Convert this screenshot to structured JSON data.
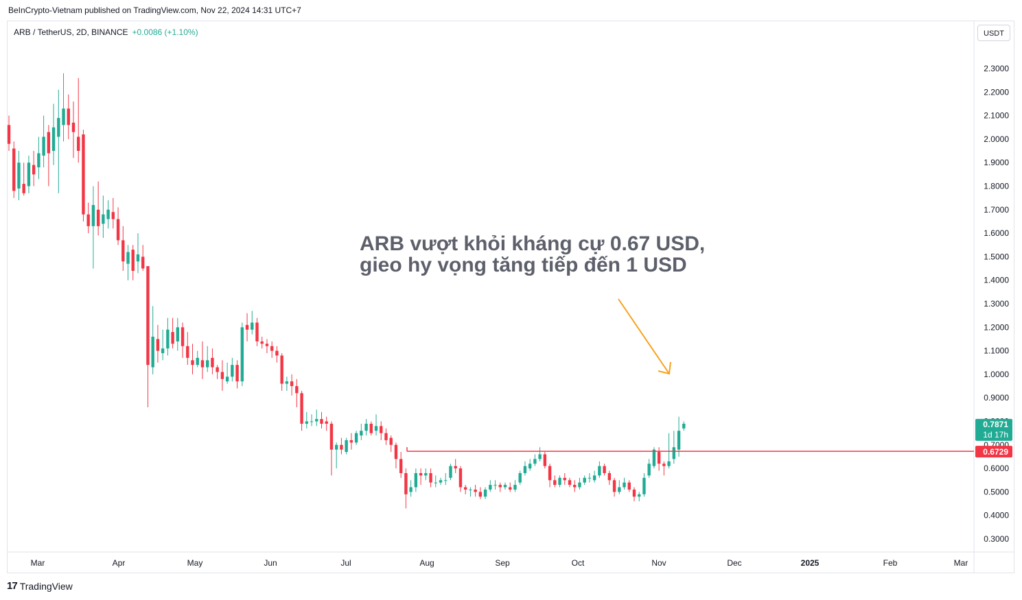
{
  "header": {
    "published": "BeInCrypto-Vietnam published on TradingView.com, Nov 22, 2024 14:31 UTC+7"
  },
  "legend": {
    "symbol": "ARB / TetherUS, 2D, BINANCE",
    "change": "+0.0086 (+1.10%)"
  },
  "axis": {
    "unit_button": "USDT"
  },
  "footer": {
    "brand": "TradingView",
    "logo_icon": "tradingview-logo-icon"
  },
  "colors": {
    "up": "#22ab94",
    "down": "#f23645",
    "level": "#f23645",
    "arrow": "#f7a21b",
    "annotation": "#5d606b"
  },
  "chart_data": {
    "type": "candlestick",
    "ylim": [
      0.27,
      2.42
    ],
    "y_ticks": [
      "2.3000",
      "2.2000",
      "2.1000",
      "2.0000",
      "1.9000",
      "1.8000",
      "1.7000",
      "1.6000",
      "1.5000",
      "1.4000",
      "1.3000",
      "1.2000",
      "1.1000",
      "1.0000",
      "0.9000",
      "0.8000",
      "0.7000",
      "0.6000",
      "0.5000",
      "0.4000",
      "0.3000"
    ],
    "x_labels": [
      "Mar",
      "Apr",
      "May",
      "Jun",
      "Jul",
      "Aug",
      "Sep",
      "Oct",
      "Nov",
      "Dec",
      "2025",
      "Feb",
      "Mar"
    ],
    "annotation": [
      "ARB vượt khỏi kháng cự 0.67 USD,",
      "gieo hy vọng tăng tiếp đến 1 USD"
    ],
    "level": 0.6729,
    "level_label": "0.6729",
    "last_price_label": "0.7871",
    "countdown_label": "1d 17h",
    "last_price": 0.7871,
    "candles": [
      [
        2.06,
        1.98,
        2.1,
        1.95
      ],
      [
        1.96,
        1.78,
        1.99,
        1.75
      ],
      [
        1.79,
        1.9,
        1.95,
        1.74
      ],
      [
        1.81,
        1.77,
        1.9,
        1.76
      ],
      [
        1.8,
        1.9,
        1.93,
        1.77
      ],
      [
        1.89,
        1.85,
        1.95,
        1.8
      ],
      [
        1.88,
        1.94,
        2.01,
        1.83
      ],
      [
        1.93,
        2.01,
        2.1,
        1.88
      ],
      [
        2.03,
        1.94,
        2.06,
        1.8
      ],
      [
        1.95,
        2.05,
        2.15,
        1.89
      ],
      [
        2.01,
        2.09,
        2.21,
        1.77
      ],
      [
        2.06,
        2.13,
        2.28,
        1.99
      ],
      [
        2.13,
        2.06,
        2.19,
        2.0
      ],
      [
        2.07,
        2.03,
        2.16,
        1.92
      ],
      [
        2.01,
        1.95,
        2.26,
        1.9
      ],
      [
        2.02,
        1.68,
        2.04,
        1.65
      ],
      [
        1.68,
        1.63,
        1.73,
        1.6
      ],
      [
        1.63,
        1.72,
        1.8,
        1.45
      ],
      [
        1.7,
        1.63,
        1.82,
        1.59
      ],
      [
        1.64,
        1.68,
        1.76,
        1.58
      ],
      [
        1.66,
        1.7,
        1.74,
        1.62
      ],
      [
        1.69,
        1.66,
        1.75,
        1.62
      ],
      [
        1.66,
        1.57,
        1.71,
        1.55
      ],
      [
        1.57,
        1.48,
        1.63,
        1.44
      ],
      [
        1.47,
        1.52,
        1.55,
        1.4
      ],
      [
        1.53,
        1.44,
        1.55,
        1.4
      ],
      [
        1.48,
        1.51,
        1.6,
        1.43
      ],
      [
        1.5,
        1.45,
        1.55,
        1.44
      ],
      [
        1.46,
        1.04,
        1.46,
        0.86
      ],
      [
        1.03,
        1.16,
        1.29,
        1.0
      ],
      [
        1.15,
        1.1,
        1.21,
        1.05
      ],
      [
        1.09,
        1.11,
        1.19,
        1.06
      ],
      [
        1.11,
        1.19,
        1.24,
        1.08
      ],
      [
        1.18,
        1.13,
        1.24,
        1.11
      ],
      [
        1.14,
        1.2,
        1.24,
        1.1
      ],
      [
        1.2,
        1.12,
        1.22,
        1.07
      ],
      [
        1.12,
        1.07,
        1.18,
        1.04
      ],
      [
        1.06,
        1.04,
        1.13,
        1.0
      ],
      [
        1.04,
        1.07,
        1.1,
        1.03
      ],
      [
        1.06,
        1.03,
        1.14,
        0.98
      ],
      [
        1.03,
        1.06,
        1.12,
        1.01
      ],
      [
        1.07,
        1.03,
        1.11,
        1.0
      ],
      [
        1.03,
        1.01,
        1.04,
        0.98
      ],
      [
        1.01,
        0.98,
        1.06,
        0.93
      ],
      [
        0.97,
        0.99,
        1.05,
        0.96
      ],
      [
        0.99,
        1.04,
        1.07,
        0.97
      ],
      [
        1.04,
        0.97,
        1.06,
        0.94
      ],
      [
        0.97,
        1.2,
        1.22,
        0.95
      ],
      [
        1.21,
        1.19,
        1.26,
        1.14
      ],
      [
        1.19,
        1.22,
        1.27,
        1.17
      ],
      [
        1.22,
        1.14,
        1.24,
        1.12
      ],
      [
        1.14,
        1.13,
        1.16,
        1.11
      ],
      [
        1.13,
        1.12,
        1.15,
        1.09
      ],
      [
        1.12,
        1.1,
        1.14,
        1.07
      ],
      [
        1.1,
        1.08,
        1.12,
        1.05
      ],
      [
        1.08,
        0.96,
        1.09,
        0.93
      ],
      [
        0.96,
        0.97,
        0.99,
        0.93
      ],
      [
        0.97,
        0.95,
        1.0,
        0.91
      ],
      [
        0.95,
        0.92,
        0.98,
        0.86
      ],
      [
        0.92,
        0.79,
        0.93,
        0.76
      ],
      [
        0.79,
        0.8,
        0.84,
        0.77
      ],
      [
        0.8,
        0.8,
        0.83,
        0.78
      ],
      [
        0.8,
        0.81,
        0.85,
        0.78
      ],
      [
        0.81,
        0.79,
        0.84,
        0.77
      ],
      [
        0.8,
        0.79,
        0.82,
        0.76
      ],
      [
        0.79,
        0.68,
        0.8,
        0.57
      ],
      [
        0.68,
        0.7,
        0.71,
        0.6
      ],
      [
        0.7,
        0.68,
        0.73,
        0.66
      ],
      [
        0.67,
        0.72,
        0.73,
        0.66
      ],
      [
        0.72,
        0.71,
        0.75,
        0.68
      ],
      [
        0.71,
        0.75,
        0.76,
        0.7
      ],
      [
        0.74,
        0.76,
        0.79,
        0.72
      ],
      [
        0.76,
        0.79,
        0.81,
        0.74
      ],
      [
        0.79,
        0.75,
        0.8,
        0.74
      ],
      [
        0.76,
        0.78,
        0.83,
        0.74
      ],
      [
        0.78,
        0.75,
        0.8,
        0.72
      ],
      [
        0.75,
        0.72,
        0.77,
        0.7
      ],
      [
        0.73,
        0.7,
        0.74,
        0.67
      ],
      [
        0.7,
        0.64,
        0.71,
        0.6
      ],
      [
        0.64,
        0.58,
        0.67,
        0.56
      ],
      [
        0.58,
        0.49,
        0.6,
        0.43
      ],
      [
        0.5,
        0.52,
        0.55,
        0.48
      ],
      [
        0.52,
        0.58,
        0.6,
        0.5
      ],
      [
        0.58,
        0.57,
        0.6,
        0.53
      ],
      [
        0.57,
        0.58,
        0.6,
        0.55
      ],
      [
        0.58,
        0.54,
        0.6,
        0.52
      ],
      [
        0.54,
        0.54,
        0.57,
        0.52
      ],
      [
        0.54,
        0.55,
        0.56,
        0.53
      ],
      [
        0.55,
        0.55,
        0.58,
        0.53
      ],
      [
        0.56,
        0.61,
        0.62,
        0.55
      ],
      [
        0.61,
        0.6,
        0.64,
        0.58
      ],
      [
        0.6,
        0.52,
        0.61,
        0.5
      ],
      [
        0.52,
        0.51,
        0.53,
        0.49
      ],
      [
        0.51,
        0.51,
        0.52,
        0.48
      ],
      [
        0.51,
        0.5,
        0.53,
        0.48
      ],
      [
        0.5,
        0.48,
        0.52,
        0.47
      ],
      [
        0.48,
        0.51,
        0.52,
        0.47
      ],
      [
        0.51,
        0.53,
        0.55,
        0.5
      ],
      [
        0.53,
        0.53,
        0.55,
        0.51
      ],
      [
        0.53,
        0.52,
        0.54,
        0.5
      ],
      [
        0.52,
        0.53,
        0.54,
        0.51
      ],
      [
        0.52,
        0.51,
        0.54,
        0.5
      ],
      [
        0.51,
        0.53,
        0.55,
        0.5
      ],
      [
        0.54,
        0.58,
        0.59,
        0.53
      ],
      [
        0.58,
        0.61,
        0.63,
        0.57
      ],
      [
        0.6,
        0.62,
        0.64,
        0.59
      ],
      [
        0.62,
        0.64,
        0.66,
        0.61
      ],
      [
        0.64,
        0.66,
        0.69,
        0.63
      ],
      [
        0.66,
        0.61,
        0.67,
        0.6
      ],
      [
        0.61,
        0.55,
        0.62,
        0.52
      ],
      [
        0.55,
        0.53,
        0.57,
        0.52
      ],
      [
        0.53,
        0.56,
        0.57,
        0.52
      ],
      [
        0.56,
        0.55,
        0.58,
        0.53
      ],
      [
        0.55,
        0.53,
        0.56,
        0.52
      ],
      [
        0.53,
        0.52,
        0.55,
        0.5
      ],
      [
        0.52,
        0.54,
        0.56,
        0.51
      ],
      [
        0.54,
        0.56,
        0.57,
        0.53
      ],
      [
        0.56,
        0.56,
        0.58,
        0.54
      ],
      [
        0.55,
        0.57,
        0.59,
        0.54
      ],
      [
        0.57,
        0.61,
        0.63,
        0.56
      ],
      [
        0.61,
        0.58,
        0.62,
        0.57
      ],
      [
        0.58,
        0.55,
        0.59,
        0.53
      ],
      [
        0.55,
        0.5,
        0.56,
        0.48
      ],
      [
        0.5,
        0.52,
        0.55,
        0.49
      ],
      [
        0.52,
        0.54,
        0.56,
        0.51
      ],
      [
        0.54,
        0.51,
        0.55,
        0.5
      ],
      [
        0.51,
        0.48,
        0.52,
        0.46
      ],
      [
        0.48,
        0.49,
        0.5,
        0.46
      ],
      [
        0.49,
        0.56,
        0.58,
        0.48
      ],
      [
        0.57,
        0.62,
        0.64,
        0.56
      ],
      [
        0.61,
        0.68,
        0.69,
        0.6
      ],
      [
        0.67,
        0.62,
        0.69,
        0.59
      ],
      [
        0.62,
        0.61,
        0.63,
        0.57
      ],
      [
        0.61,
        0.63,
        0.75,
        0.6
      ],
      [
        0.64,
        0.69,
        0.76,
        0.62
      ],
      [
        0.68,
        0.76,
        0.82,
        0.65
      ],
      [
        0.77,
        0.79,
        0.8,
        0.76
      ]
    ]
  }
}
